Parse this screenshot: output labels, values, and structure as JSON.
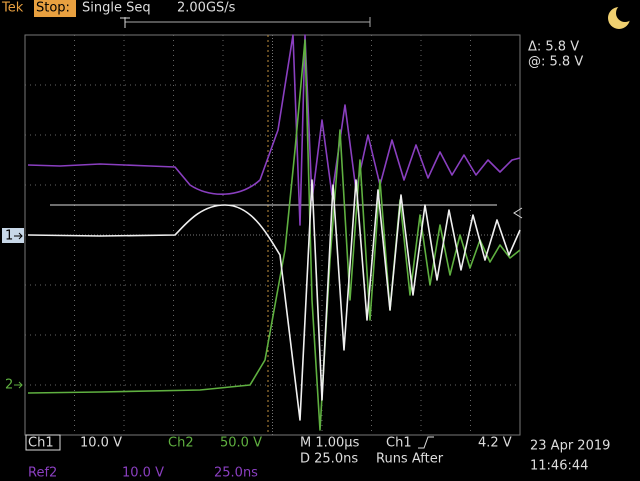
{
  "header": {
    "brand": "Tek",
    "status": "Stop:",
    "mode": "Single Seq",
    "sample_rate": "2.00GS/s"
  },
  "cursor_readout": {
    "delta": "Δ: 5.8 V",
    "at": "@: 5.8 V"
  },
  "channel_markers": {
    "ch1": "1",
    "ch2": "2"
  },
  "footer": {
    "ch1_label": "Ch1",
    "ch1_scale": "10.0 V",
    "ch2_label": "Ch2",
    "ch2_scale": "50.0 V",
    "timebase": "M 1.00µs",
    "delay": "D 25.0ns",
    "trigger_source": "Ch1",
    "trigger_level": "4.2 V",
    "trigger_state": "Runs After",
    "date": "23 Apr 2019",
    "time": "11:46:44",
    "ref_label": "Ref2",
    "ref_scale": "10.0 V",
    "ref_time": "25.0ns"
  }
}
